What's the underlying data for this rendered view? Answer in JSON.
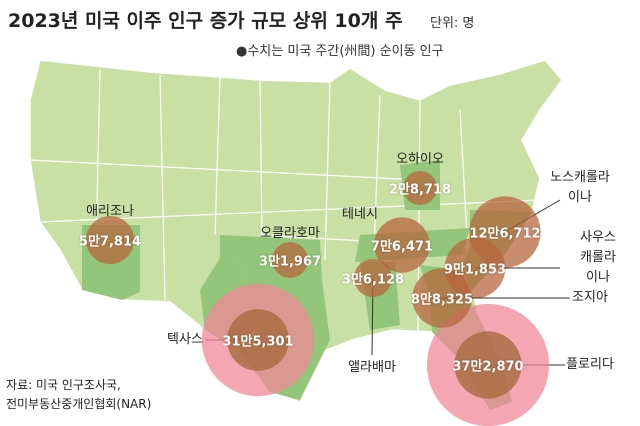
{
  "header": {
    "title": "2023년 미국 이주 인구 증가 규모 상위 10개 주",
    "unit": "단위: 명",
    "note": "●수치는 미국 주간(州間) 순이동 인구"
  },
  "states": [
    {
      "name": "텍사스",
      "value": 315301,
      "label": "31만5,301",
      "color": "#f08a98"
    },
    {
      "name": "플로리다",
      "value": 372870,
      "label": "37만2,870",
      "color": "#f08a98"
    },
    {
      "name": "노스캐롤라이나",
      "value": 126712,
      "label": "12만6,712",
      "color": "#b7663f"
    },
    {
      "name": "사우스\n캐롤라이나",
      "value": 91853,
      "label": "9만1,853",
      "color": "#b7663f"
    },
    {
      "name": "조지아",
      "value": 88325,
      "label": "8만8,325",
      "color": "#b7663f"
    },
    {
      "name": "테네시",
      "value": 76471,
      "label": "7만6,471",
      "color": "#b7663f"
    },
    {
      "name": "애리조나",
      "value": 57814,
      "label": "5만7,814",
      "color": "#b7663f"
    },
    {
      "name": "앨라배마",
      "value": 36128,
      "label": "3만6,128",
      "color": "#b7663f"
    },
    {
      "name": "오클라호마",
      "value": 31967,
      "label": "3만1,967",
      "color": "#b7663f"
    },
    {
      "name": "오하이오",
      "value": 28718,
      "label": "2만8,718",
      "color": "#b7663f"
    }
  ],
  "source": [
    "자료: 미국 인구조사국,",
    "전미부동산중개인협회(NAR)"
  ]
}
